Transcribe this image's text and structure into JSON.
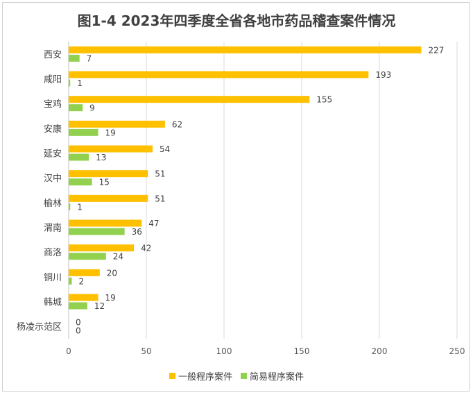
{
  "colors": {
    "general": "#FFC000",
    "simple": "#92D050"
  },
  "chart_data": {
    "type": "bar",
    "orientation": "horizontal",
    "title": "图1-4  2023年四季度全省各地市药品稽查案件情况",
    "categories": [
      "西安",
      "咸阳",
      "宝鸡",
      "安康",
      "延安",
      "汉中",
      "榆林",
      "渭南",
      "商洛",
      "铜川",
      "韩城",
      "杨凌示范区"
    ],
    "series": [
      {
        "name": "一般程序案件",
        "values": [
          227,
          193,
          155,
          62,
          54,
          51,
          51,
          47,
          42,
          20,
          19,
          0
        ]
      },
      {
        "name": "简易程序案件",
        "values": [
          7,
          1,
          9,
          19,
          13,
          15,
          1,
          36,
          24,
          2,
          12,
          0
        ]
      }
    ],
    "xlim": [
      0,
      250
    ],
    "xticks": [
      0,
      50,
      100,
      150,
      200,
      250
    ],
    "legend_position": "bottom"
  }
}
